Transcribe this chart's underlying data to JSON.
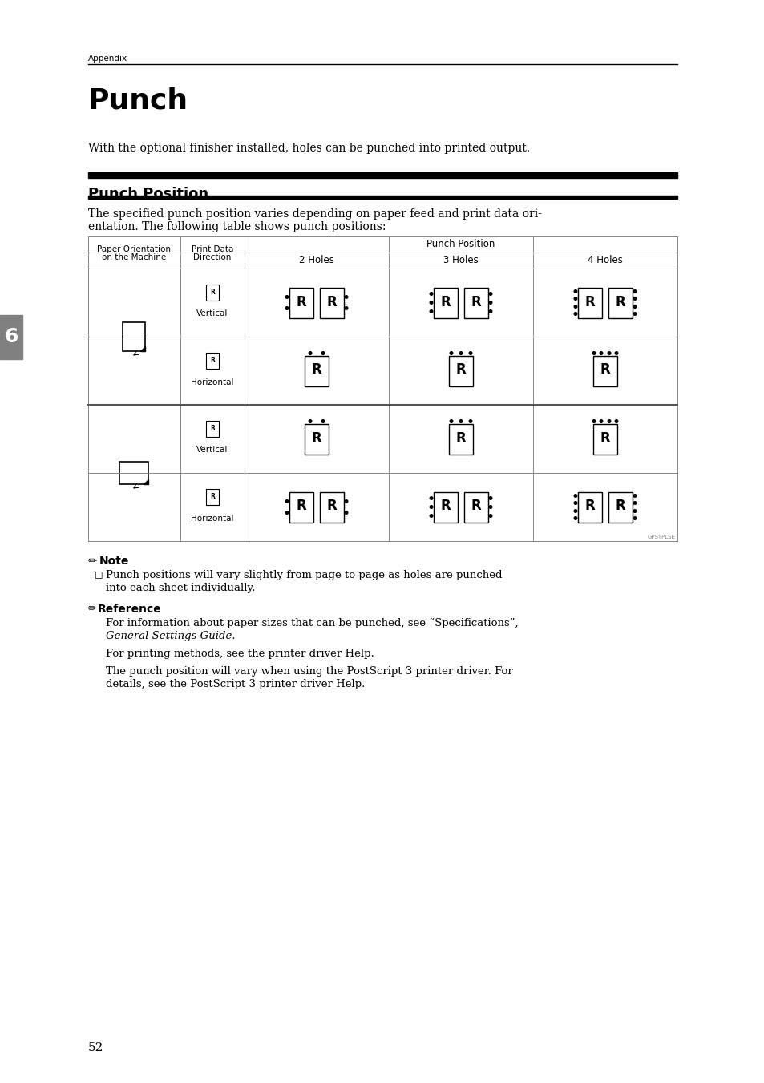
{
  "page_bg": "#ffffff",
  "header_label": "Appendix",
  "title": "Punch",
  "intro_text": "With the optional finisher installed, holes can be punched into printed output.",
  "section_title": "Punch Position",
  "section_body_1": "The specified punch position varies depending on paper feed and print data ori-",
  "section_body_2": "entation. The following table shows punch positions:",
  "table_col0_header1": "Paper Orientation",
  "table_col0_header2": "on the Machine",
  "table_col1_header1": "Print Data",
  "table_col1_header2": "Direction",
  "table_col2_header": "2 Holes",
  "table_col3_header": "3 Holes",
  "table_col4_header": "4 Holes",
  "punch_position_header": "Punch Position",
  "watermark": "GPSTPLSE",
  "note_title": "Note",
  "note_line1": "Punch positions will vary slightly from page to page as holes are punched",
  "note_line2": "into each sheet individually.",
  "ref_title": "Reference",
  "ref1_line1": "For information about paper sizes that can be punched, see “Specifications”,",
  "ref1_line2": "General Settings Guide.",
  "ref2": "For printing methods, see the printer driver Help.",
  "ref3_line1": "The punch position will vary when using the PostScript 3 printer driver. For",
  "ref3_line2": "details, see the PostScript 3 printer driver Help.",
  "page_number": "52",
  "tab_label": "6",
  "tab_color": "#808080"
}
